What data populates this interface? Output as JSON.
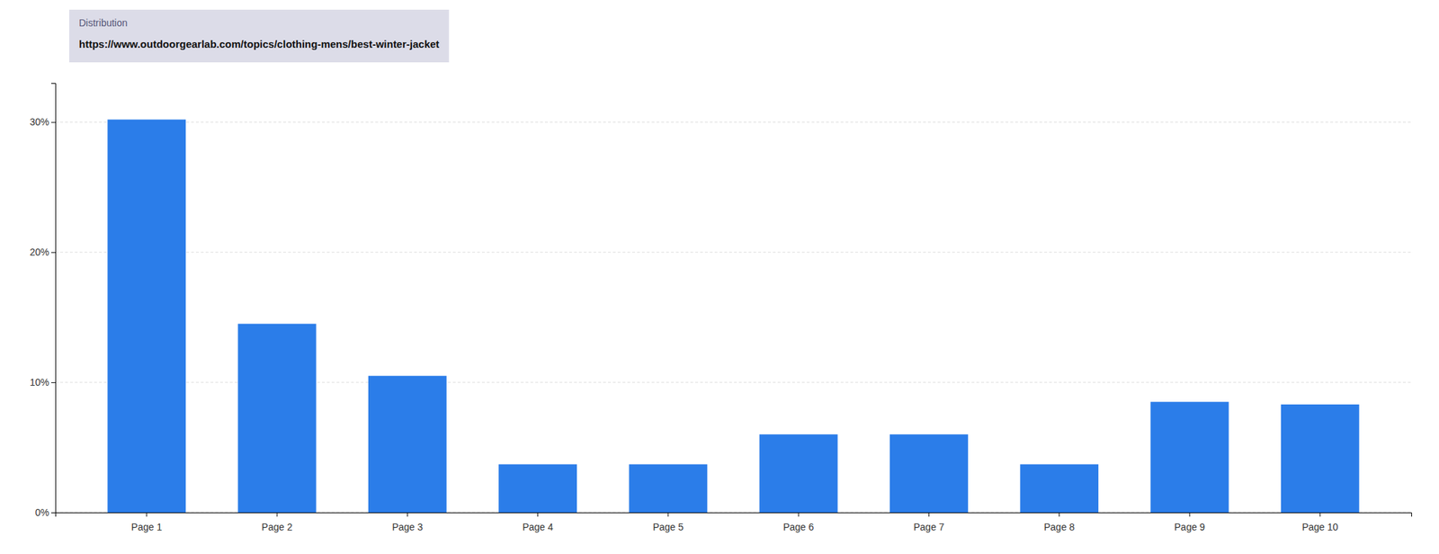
{
  "chart_data": {
    "type": "bar",
    "categories": [
      "Page 1",
      "Page 2",
      "Page 3",
      "Page 4",
      "Page 5",
      "Page 6",
      "Page 7",
      "Page 8",
      "Page 9",
      "Page 10"
    ],
    "values": [
      30.2,
      14.5,
      10.5,
      3.7,
      3.7,
      6.0,
      6.0,
      3.7,
      8.5,
      8.3
    ],
    "color": "#2b7de9",
    "ylim": [
      0,
      33
    ],
    "yticks": [
      {
        "value": 0,
        "label": "0%"
      },
      {
        "value": 10,
        "label": "10%"
      },
      {
        "value": 20,
        "label": "20%"
      },
      {
        "value": 30,
        "label": "30%"
      }
    ],
    "grid": true,
    "annotations": [
      "Distribution",
      "https://www.outdoorgearlab.com/topics/clothing-mens/best-winter-jacket"
    ]
  }
}
